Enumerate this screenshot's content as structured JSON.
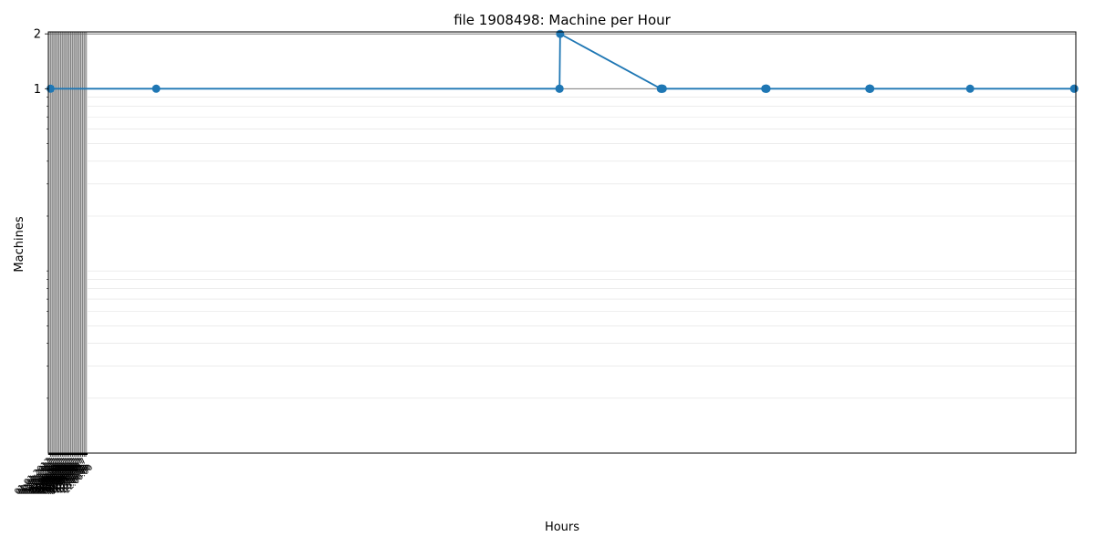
{
  "chart_data": {
    "type": "line",
    "title": "file 1908498: Machine per Hour",
    "xlabel": "Hours",
    "ylabel": "Machines",
    "xlim": [
      "2016-12-31 09:00",
      "2017-11-01 17:00"
    ],
    "ylim": [
      0.01,
      2.05
    ],
    "y_scale": "log",
    "grid": {
      "major": true,
      "minor": true
    },
    "line_color": "#1f77b4",
    "x_tick_labels": [
      "01-01-2017\n00:00:00",
      "01-01-2017\n12:00:00",
      "02-01-2017\n00:00:00",
      "02-01-2017\n12:00:00",
      "03-01-2017\n00:00:00",
      "03-01-2017\n12:00:00",
      "04-01-2017\n00:00:00",
      "04-01-2017\n12:00:00",
      "05-01-2017\n00:00:00",
      "05-01-2017\n12:00:00",
      "06-01-2017\n00:00:00",
      "06-01-2017\n12:00:00",
      "07-01-2017\n00:00:00",
      "07-01-2017\n12:00:00",
      "08-01-2017\n00:00:00",
      "08-01-2017\n12:00:00",
      "09-01-2017\n00:00:00",
      "09-01-2017\n12:00:00",
      "10-01-2017\n00:00:00",
      "10-01-2017\n12:00:00",
      "11-01-2017\n00:00:00",
      "11-01-2017\n12:00:00"
    ],
    "y_tick_labels": [
      "1",
      "2"
    ],
    "series": [
      {
        "x": [
          "2017-01-01 01:00",
          "2017-02-01 10:00",
          "2017-06-01 06:00",
          "2017-06-01 07:00",
          "2017-06-01 11:00",
          "2017-07-01 09:00",
          "2017-07-01 11:00",
          "2017-07-01 15:00",
          "2017-07-01 19:00",
          "2017-07-01 23:00",
          "2017-08-01 10:00",
          "2017-08-01 16:00",
          "2017-08-01 18:00",
          "2017-08-01 19:00",
          "2017-09-01 08:00",
          "2017-09-01 10:00",
          "2017-09-01 12:00",
          "2017-09-01 13:00",
          "2017-09-01 15:00",
          "2017-10-01 07:00",
          "2017-11-01 05:00",
          "2017-11-01 06:00"
        ],
        "values": [
          1,
          1,
          1,
          1,
          2,
          1,
          1,
          1,
          1,
          1,
          1,
          1,
          1,
          1,
          1,
          1,
          1,
          1,
          1,
          1,
          1,
          1
        ]
      }
    ]
  }
}
